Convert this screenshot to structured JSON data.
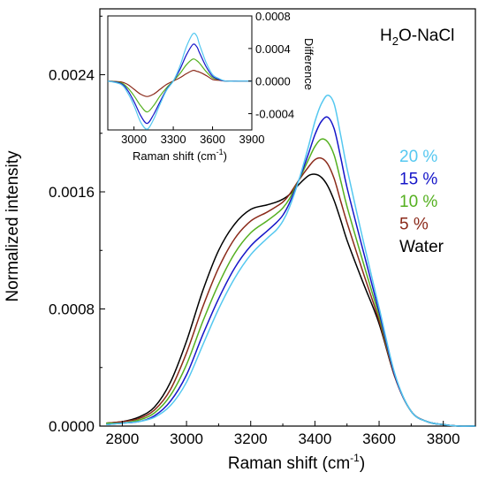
{
  "chart_data": [
    {
      "type": "line",
      "xlabel": "Raman shift (cm",
      "xlabel_sup": "-1",
      "xlabel_end": ")",
      "ylabel": "Normalized intensity",
      "xlim": [
        2730,
        3900
      ],
      "ylim": [
        0,
        0.00285
      ],
      "x_ticks": [
        2800,
        3000,
        3200,
        3400,
        3600,
        3800
      ],
      "y_ticks": [
        0.0,
        0.0008,
        0.0016,
        0.0024
      ],
      "y_tick_labels": [
        "0.0000",
        "0.0008",
        "0.0016",
        "0.0024"
      ],
      "annotation": {
        "prefix": "H",
        "sub": "2",
        "suffix": "O-NaCl"
      },
      "legend": [
        {
          "label": "20 %",
          "color": "#55c8f0"
        },
        {
          "label": "15 %",
          "color": "#1515c8"
        },
        {
          "label": "10 %",
          "color": "#55b020"
        },
        {
          "label": "5 %",
          "color": "#8b2a1a"
        },
        {
          "label": "Water",
          "color": "#000000"
        }
      ],
      "x": [
        2750,
        2800,
        2850,
        2900,
        2950,
        3000,
        3050,
        3100,
        3150,
        3200,
        3250,
        3280,
        3300,
        3320,
        3350,
        3380,
        3400,
        3420,
        3440,
        3460,
        3480,
        3500,
        3550,
        3600,
        3650,
        3700,
        3750,
        3800,
        3850,
        3900
      ],
      "series": [
        {
          "name": "Water",
          "color": "#000000",
          "values": [
            2e-05,
            3e-05,
            6e-05,
            0.00013,
            0.0003,
            0.00058,
            0.00092,
            0.0012,
            0.00138,
            0.00148,
            0.00151,
            0.00153,
            0.00155,
            0.00158,
            0.00165,
            0.00171,
            0.00172,
            0.0017,
            0.00164,
            0.00154,
            0.00141,
            0.00127,
            0.00098,
            0.0007,
            0.00033,
            0.0001,
            3e-05,
            1e-05,
            0.0,
            0.0
          ]
        },
        {
          "name": "5 %",
          "color": "#8b2a1a",
          "values": [
            2e-05,
            3e-05,
            5e-05,
            0.00011,
            0.00025,
            0.0005,
            0.00081,
            0.00108,
            0.00128,
            0.0014,
            0.00146,
            0.0015,
            0.00153,
            0.00158,
            0.00168,
            0.00177,
            0.00182,
            0.00183,
            0.00179,
            0.00169,
            0.00154,
            0.00139,
            0.00105,
            0.00072,
            0.00033,
            0.0001,
            3e-05,
            1e-05,
            0.0,
            0.0
          ]
        },
        {
          "name": "10 %",
          "color": "#55b020",
          "values": [
            2e-05,
            2e-05,
            4e-05,
            9e-05,
            0.00021,
            0.00042,
            0.00071,
            0.00097,
            0.00118,
            0.00132,
            0.0014,
            0.00145,
            0.00149,
            0.00155,
            0.00168,
            0.00182,
            0.00191,
            0.00196,
            0.00194,
            0.00185,
            0.00168,
            0.0015,
            0.00112,
            0.00075,
            0.00034,
            0.0001,
            3e-05,
            1e-05,
            0.0,
            0.0
          ]
        },
        {
          "name": "15 %",
          "color": "#1515c8",
          "values": [
            1e-05,
            2e-05,
            3e-05,
            7e-05,
            0.00017,
            0.00035,
            0.00062,
            0.00087,
            0.00108,
            0.00123,
            0.00133,
            0.00139,
            0.00144,
            0.00152,
            0.00168,
            0.00186,
            0.00199,
            0.00208,
            0.00211,
            0.00203,
            0.00184,
            0.00163,
            0.0012,
            0.00078,
            0.00034,
            0.0001,
            3e-05,
            1e-05,
            0.0,
            0.0
          ]
        },
        {
          "name": "20 %",
          "color": "#55c8f0",
          "values": [
            1e-05,
            2e-05,
            3e-05,
            6e-05,
            0.00014,
            0.0003,
            0.00055,
            0.0008,
            0.00101,
            0.00117,
            0.00128,
            0.00134,
            0.0014,
            0.00149,
            0.00168,
            0.00191,
            0.00208,
            0.0022,
            0.00226,
            0.0022,
            0.00199,
            0.00176,
            0.00127,
            0.00081,
            0.00035,
            0.0001,
            3e-05,
            1e-05,
            0.0,
            0.0
          ]
        }
      ]
    },
    {
      "type": "line",
      "xlabel": "Raman shift (cm",
      "xlabel_sup": "-1",
      "xlabel_end": ")",
      "ylabel": "Difference",
      "xlim": [
        2800,
        3900
      ],
      "ylim": [
        -0.0006,
        0.0008
      ],
      "x_ticks": [
        3000,
        3300,
        3600,
        3900
      ],
      "y_ticks": [
        -0.0004,
        0.0,
        0.0004,
        0.0008
      ],
      "y_tick_labels": [
        "-0.0004",
        "0.0000",
        "0.0004",
        "0.0008"
      ],
      "x": [
        2800,
        2900,
        2950,
        3000,
        3050,
        3100,
        3150,
        3200,
        3250,
        3300,
        3350,
        3400,
        3450,
        3480,
        3500,
        3550,
        3600,
        3650,
        3700,
        3800,
        3900
      ],
      "series": [
        {
          "name": "5 %",
          "color": "#8b2a1a",
          "values": [
            0.0,
            -1e-05,
            -4e-05,
            -0.0001,
            -0.00016,
            -0.00019,
            -0.00016,
            -0.0001,
            -4e-05,
            0.0,
            4e-05,
            9e-05,
            0.00013,
            0.00012,
            0.00011,
            7e-05,
            2e-05,
            1e-05,
            0.0,
            0.0,
            0.0
          ]
        },
        {
          "name": "10 %",
          "color": "#55b020",
          "values": [
            0.0,
            -2e-05,
            -8e-05,
            -0.00018,
            -0.0003,
            -0.00038,
            -0.0003,
            -0.00018,
            -8e-05,
            0.0,
            9e-05,
            0.0002,
            0.00027,
            0.00025,
            0.00022,
            0.00012,
            4e-05,
            2e-05,
            0.0,
            0.0,
            0.0
          ]
        },
        {
          "name": "15 %",
          "color": "#1515c8",
          "values": [
            0.0,
            -3e-05,
            -0.00011,
            -0.00025,
            -0.00042,
            -0.00052,
            -0.00041,
            -0.00025,
            -0.0001,
            0.0,
            0.00014,
            0.00032,
            0.00045,
            0.00042,
            0.00035,
            0.00018,
            6e-05,
            2e-05,
            0.0,
            0.0,
            0.0
          ]
        },
        {
          "name": "20 %",
          "color": "#55c8f0",
          "values": [
            0.0,
            -4e-05,
            -0.00014,
            -0.0003,
            -0.0005,
            -0.00059,
            -0.00047,
            -0.00028,
            -0.00011,
            0.0,
            0.00018,
            0.00042,
            0.00058,
            0.00055,
            0.00045,
            0.00023,
            8e-05,
            3e-05,
            0.0,
            0.0,
            0.0
          ]
        }
      ]
    }
  ]
}
